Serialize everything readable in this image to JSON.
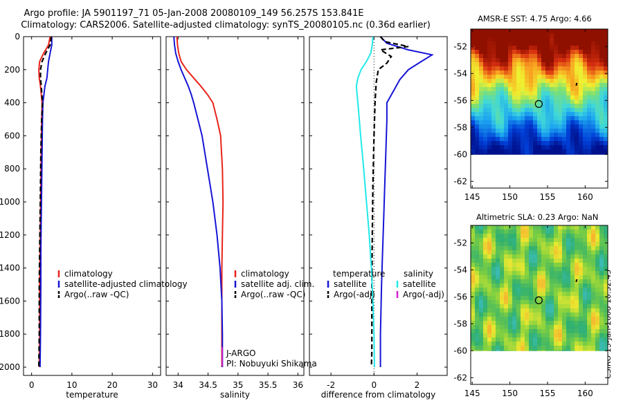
{
  "header": {
    "line1": "Argo profile: JA 5901197_71 05-Jan-2008 20080109_149 56.257S 153.841E",
    "line2": "Climatology: CARS2006. Satellite-adjusted climatology: synTS_20080105.nc (0.36d earlier)"
  },
  "colors": {
    "climatology": "#e8231a",
    "satellite": "#1414d6",
    "argo": "#000000",
    "salinity_diff": "#22e8e8",
    "argo_adj": "#d020d0"
  },
  "chart_data": [
    {
      "type": "line",
      "panel": "temperature",
      "xlabel": "temperature",
      "ylabel": "",
      "xlim": [
        -2,
        32
      ],
      "ylim": [
        2050,
        0
      ],
      "xticks": [
        0,
        10,
        20,
        30
      ],
      "yticks": [
        0,
        200,
        400,
        600,
        800,
        1000,
        1200,
        1400,
        1600,
        1800,
        2000
      ],
      "legend": [
        "climatology",
        "satellite-adjusted climatology",
        "Argo(..raw -QC)"
      ],
      "series": [
        {
          "name": "climatology",
          "color": "climatology",
          "dash": false,
          "x": [
            4.6,
            4.2,
            3.0,
            2.0,
            1.8,
            1.9,
            2.2,
            2.6,
            2.5,
            2.4,
            2.3,
            2.2,
            2.1,
            2.0,
            2.0,
            1.9
          ],
          "y": [
            0,
            50,
            100,
            150,
            200,
            250,
            300,
            400,
            500,
            700,
            900,
            1100,
            1300,
            1500,
            1800,
            2000
          ]
        },
        {
          "name": "satellite-adjusted climatology",
          "color": "satellite",
          "dash": false,
          "x": [
            5.0,
            5.0,
            4.6,
            4.2,
            4.0,
            3.8,
            3.3,
            2.8,
            2.7,
            2.6,
            2.5,
            2.4,
            2.3,
            2.3,
            2.2,
            2.1
          ],
          "y": [
            0,
            50,
            100,
            150,
            200,
            250,
            300,
            400,
            500,
            700,
            900,
            1100,
            1300,
            1500,
            1800,
            2000
          ]
        },
        {
          "name": "Argo(..raw -QC)",
          "color": "argo",
          "dash": true,
          "x": [
            4.9,
            4.6,
            3.5,
            2.6,
            2.2,
            2.2,
            2.4,
            2.7,
            2.5,
            2.3,
            2.2,
            2.1,
            2.0,
            1.9,
            1.9,
            1.8
          ],
          "y": [
            0,
            50,
            100,
            150,
            200,
            250,
            300,
            400,
            500,
            700,
            900,
            1100,
            1300,
            1500,
            1800,
            2000
          ]
        }
      ]
    },
    {
      "type": "line",
      "panel": "salinity",
      "xlabel": "salinity",
      "ylabel": "",
      "xlim": [
        33.8,
        36.1
      ],
      "ylim": [
        2050,
        0
      ],
      "xticks": [
        34,
        34.5,
        35,
        35.5,
        36
      ],
      "xticklabels": [
        "34",
        "34.5",
        "35",
        "35.5",
        "36"
      ],
      "yticks": [
        0,
        200,
        400,
        600,
        800,
        1000,
        1200,
        1400,
        1600,
        1800,
        2000
      ],
      "legend": [
        "climatology",
        "satellite adj. clim.",
        "Argo(..raw -QC)"
      ],
      "annotations": [
        "J-ARGO",
        "PI: Nobuyuki Shikama"
      ],
      "series": [
        {
          "name": "climatology",
          "color": "climatology",
          "dash": false,
          "x": [
            33.98,
            33.99,
            34.01,
            34.05,
            34.14,
            34.26,
            34.38,
            34.49,
            34.58,
            34.65,
            34.71,
            34.74,
            34.75,
            34.74,
            34.73,
            34.73,
            34.73,
            34.73
          ],
          "y": [
            0,
            50,
            100,
            150,
            200,
            250,
            300,
            350,
            400,
            500,
            600,
            800,
            1000,
            1200,
            1400,
            1600,
            1800,
            2000
          ]
        },
        {
          "name": "satellite adj. clim.",
          "color": "satellite",
          "dash": false,
          "x": [
            33.93,
            33.94,
            33.96,
            34.0,
            34.05,
            34.11,
            34.17,
            34.22,
            34.26,
            34.33,
            34.4,
            34.49,
            34.58,
            34.65,
            34.7,
            34.73,
            34.74,
            34.74
          ],
          "y": [
            0,
            50,
            100,
            150,
            200,
            250,
            300,
            350,
            400,
            500,
            600,
            800,
            1000,
            1200,
            1400,
            1600,
            1800,
            2000
          ]
        }
      ]
    },
    {
      "type": "line",
      "panel": "difference",
      "xlabel": "difference from climatology",
      "ylabel": "",
      "xlim": [
        -3.0,
        3.4
      ],
      "ylim": [
        2050,
        0
      ],
      "xticks": [
        -2,
        0,
        2
      ],
      "yticks": [
        0,
        200,
        400,
        600,
        800,
        1000,
        1200,
        1400,
        1600,
        1800,
        2000
      ],
      "legend_left": [
        "temperature",
        "satellite",
        "Argo(-adj)"
      ],
      "legend_right": [
        "salinity",
        "satellite",
        "Argo(-adj)"
      ],
      "series": [
        {
          "name": "temperature satellite",
          "color": "satellite",
          "dash": false,
          "x": [
            0.3,
            0.6,
            1.6,
            2.7,
            2.2,
            1.6,
            1.2,
            0.9,
            0.6,
            0.6,
            0.55,
            0.5,
            0.45,
            0.4,
            0.35,
            0.3,
            0.3
          ],
          "y": [
            0,
            40,
            80,
            110,
            150,
            200,
            260,
            330,
            400,
            500,
            700,
            900,
            1100,
            1300,
            1500,
            1800,
            2000
          ]
        },
        {
          "name": "temperature Argo(-adj)",
          "color": "argo",
          "dash": true,
          "x": [
            0.3,
            0.5,
            1.6,
            0.3,
            0.8,
            0.6,
            0.2,
            0.1,
            0.05,
            0.0,
            -0.05,
            -0.08,
            -0.1,
            -0.1,
            -0.1,
            -0.12
          ],
          "y": [
            0,
            30,
            60,
            80,
            120,
            160,
            200,
            280,
            400,
            600,
            900,
            1200,
            1500,
            1700,
            1900,
            2000
          ]
        },
        {
          "name": "salinity satellite",
          "color": "salinity_diff",
          "dash": false,
          "x": [
            -0.05,
            -0.08,
            -0.15,
            -0.35,
            -0.6,
            -0.75,
            -0.82,
            -0.75,
            -0.62,
            -0.48,
            -0.35,
            -0.22,
            -0.12,
            -0.05,
            0.0,
            0.02
          ],
          "y": [
            0,
            50,
            100,
            150,
            200,
            250,
            300,
            400,
            600,
            800,
            1000,
            1200,
            1400,
            1600,
            1800,
            2000
          ]
        }
      ]
    },
    {
      "type": "heatmap",
      "panel": "map_sst",
      "title": "AMSR-E SST: 4.75 Argo: 4.66",
      "xlim": [
        144.8,
        163.0
      ],
      "ylim": [
        -62.5,
        -50.7
      ],
      "xticks": [
        145,
        150,
        155,
        160
      ],
      "yticks": [
        -52,
        -54,
        -56,
        -58,
        -60,
        -62
      ],
      "marker": {
        "lon": 153.84,
        "lat": -56.26
      }
    },
    {
      "type": "heatmap",
      "panel": "map_sla",
      "title": "Altimetric SLA: 0.23 Argo: NaN",
      "xlim": [
        144.8,
        163.0
      ],
      "ylim": [
        -62.5,
        -50.7
      ],
      "xticks": [
        145,
        150,
        155,
        160
      ],
      "yticks": [
        -52,
        -54,
        -56,
        -58,
        -60,
        -62
      ],
      "marker": {
        "lon": 153.84,
        "lat": -56.26
      }
    }
  ],
  "footer": {
    "stamp": "CSIRO 13-Jan-2008 10:32:43"
  }
}
